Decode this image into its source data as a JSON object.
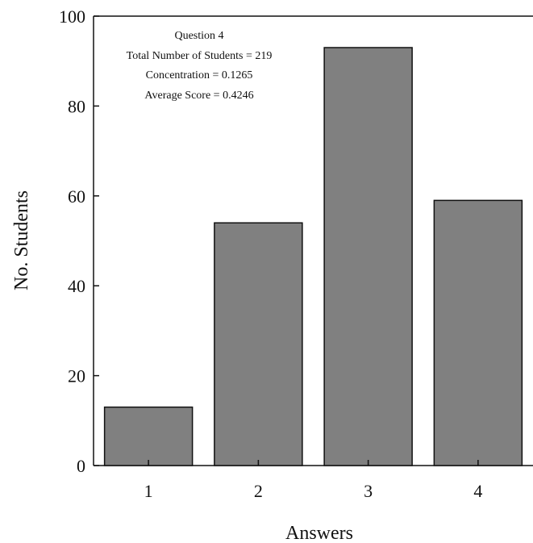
{
  "chart_data": {
    "type": "bar",
    "categories": [
      "1",
      "2",
      "3",
      "4"
    ],
    "values": [
      13,
      54,
      93,
      59
    ],
    "xlabel": "Answers",
    "ylabel": "No. Students",
    "ylim": [
      0,
      100
    ],
    "yticks": [
      "0",
      "20",
      "40",
      "60",
      "80",
      "100"
    ],
    "grid": false,
    "legend": "none",
    "bar_color": "#808080",
    "annotations": [
      "Question 4",
      "Total Number of Students = 219",
      "Concentration = 0.1265",
      "Average Score = 0.4246"
    ]
  }
}
